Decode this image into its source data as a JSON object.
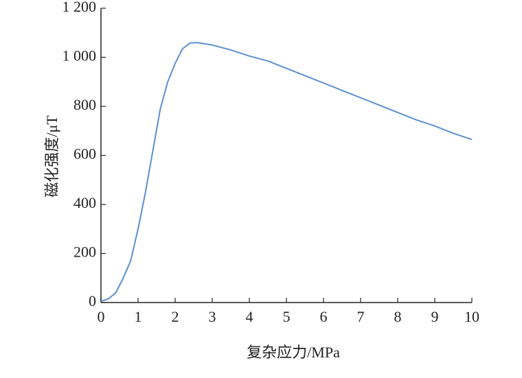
{
  "chart_data": {
    "type": "line",
    "x_label": "复杂应力/MPa",
    "y_label": "磁化强度/μT",
    "xlim": [
      0,
      10
    ],
    "ylim": [
      0,
      1200
    ],
    "xticks": [
      0,
      1,
      2,
      3,
      4,
      5,
      6,
      7,
      8,
      9,
      10
    ],
    "yticks": [
      0,
      200,
      400,
      600,
      800,
      {
        "value": 1000,
        "label": "1 000"
      },
      {
        "value": 1200,
        "label": "1 200"
      }
    ],
    "series": [
      {
        "color": "#5b8fd0",
        "x": [
          0,
          0.2,
          0.4,
          0.6,
          0.8,
          1.0,
          1.2,
          1.4,
          1.6,
          1.8,
          2.0,
          2.2,
          2.4,
          2.6,
          3.0,
          3.5,
          4.0,
          4.5,
          5.0,
          5.5,
          6.0,
          6.5,
          7.0,
          7.5,
          8.0,
          8.5,
          9.0,
          9.5,
          10.0
        ],
        "values": [
          5,
          15,
          40,
          100,
          170,
          300,
          450,
          620,
          790,
          900,
          975,
          1035,
          1058,
          1060,
          1050,
          1030,
          1005,
          985,
          955,
          925,
          895,
          865,
          835,
          805,
          775,
          745,
          720,
          690,
          665
        ]
      }
    ]
  }
}
